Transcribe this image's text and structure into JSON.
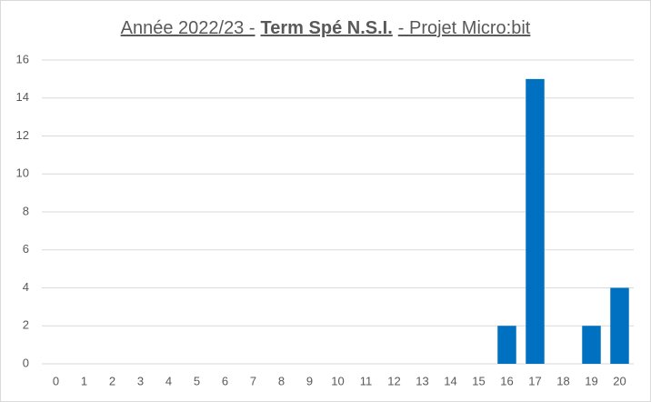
{
  "chart_data": {
    "type": "bar",
    "title": [
      "Année 2022/23 -",
      "Term Spé N.S.I.",
      "- Projet Micro:bit"
    ],
    "categories": [
      "0",
      "1",
      "2",
      "3",
      "4",
      "5",
      "6",
      "7",
      "8",
      "9",
      "10",
      "11",
      "12",
      "13",
      "14",
      "15",
      "16",
      "17",
      "18",
      "19",
      "20"
    ],
    "values": [
      0,
      0,
      0,
      0,
      0,
      0,
      0,
      0,
      0,
      0,
      0,
      0,
      0,
      0,
      0,
      0,
      2,
      15,
      0,
      2,
      4
    ],
    "color": "#0070c0",
    "ylim": [
      0,
      16
    ],
    "yticks": [
      0,
      2,
      4,
      6,
      8,
      10,
      12,
      14,
      16
    ],
    "grid": true
  }
}
